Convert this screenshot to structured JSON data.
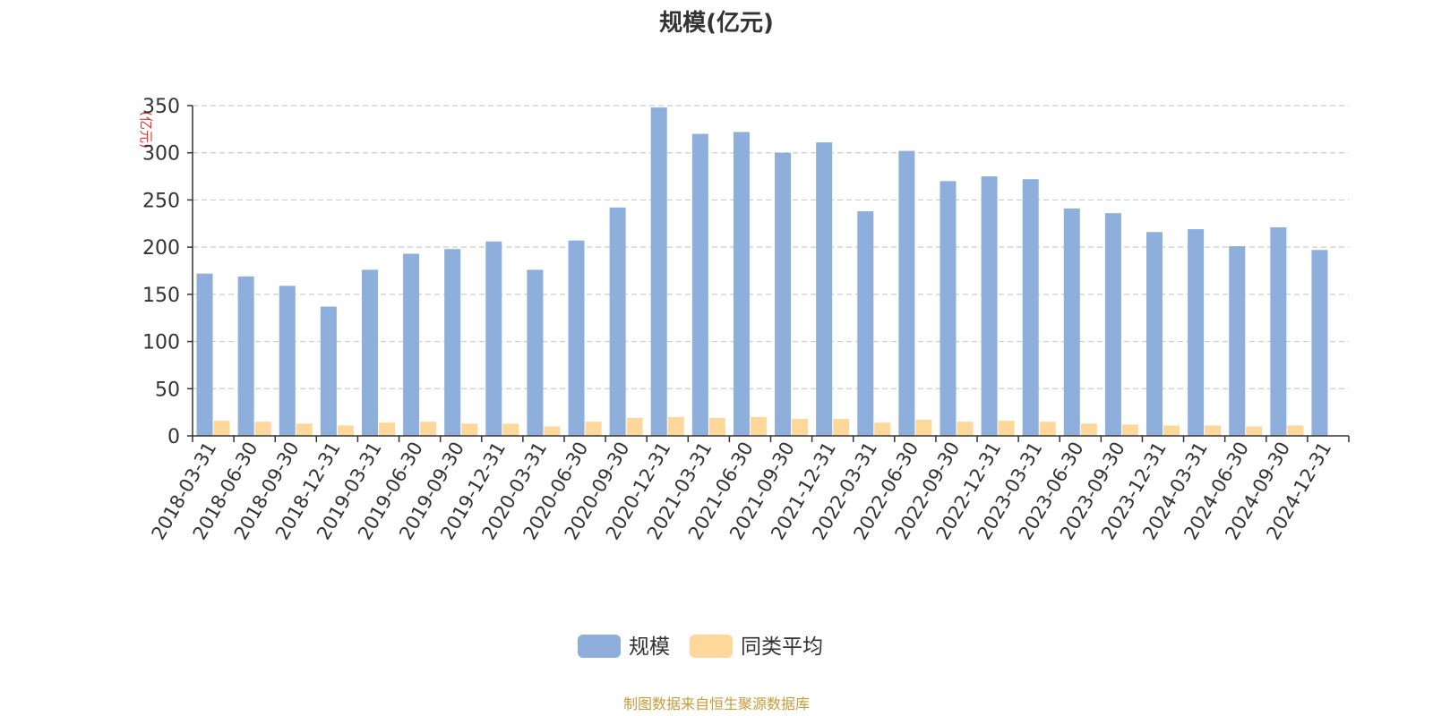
{
  "chart_data": {
    "type": "bar",
    "title": "规模(亿元)",
    "ylabel": "(亿元)",
    "xlabel": "",
    "ylim": [
      0,
      350
    ],
    "yticks": [
      0,
      50,
      100,
      150,
      200,
      250,
      300,
      350
    ],
    "grid": true,
    "legend_position": "bottom",
    "categories": [
      "2018-03-31",
      "2018-06-30",
      "2018-09-30",
      "2018-12-31",
      "2019-03-31",
      "2019-06-30",
      "2019-09-30",
      "2019-12-31",
      "2020-03-31",
      "2020-06-30",
      "2020-09-30",
      "2020-12-31",
      "2021-03-31",
      "2021-06-30",
      "2021-09-30",
      "2021-12-31",
      "2022-03-31",
      "2022-06-30",
      "2022-09-30",
      "2022-12-31",
      "2023-03-31",
      "2023-06-30",
      "2023-09-30",
      "2023-12-31",
      "2024-03-31",
      "2024-06-30",
      "2024-09-30",
      "2024-12-31"
    ],
    "series": [
      {
        "name": "规模",
        "color": "#8eaedb",
        "values": [
          172,
          169,
          159,
          137,
          176,
          193,
          198,
          206,
          176,
          207,
          242,
          348,
          320,
          322,
          300,
          311,
          238,
          302,
          270,
          275,
          272,
          241,
          236,
          216,
          219,
          201,
          221,
          197
        ]
      },
      {
        "name": "同类平均",
        "color": "#fdd89a",
        "values": [
          16,
          15,
          13,
          11,
          14,
          15,
          13,
          13,
          10,
          15,
          19,
          20,
          19,
          20,
          18,
          18,
          14,
          17,
          15,
          16,
          15,
          13,
          12,
          11,
          11,
          10,
          11,
          0
        ]
      }
    ],
    "source_note": "制图数据来自恒生聚源数据库",
    "colors": {
      "axis": "#333333",
      "grid": "#cccccc",
      "ylabel": "#e8302e",
      "source_note": "#c89b3a",
      "text": "#333333"
    }
  }
}
